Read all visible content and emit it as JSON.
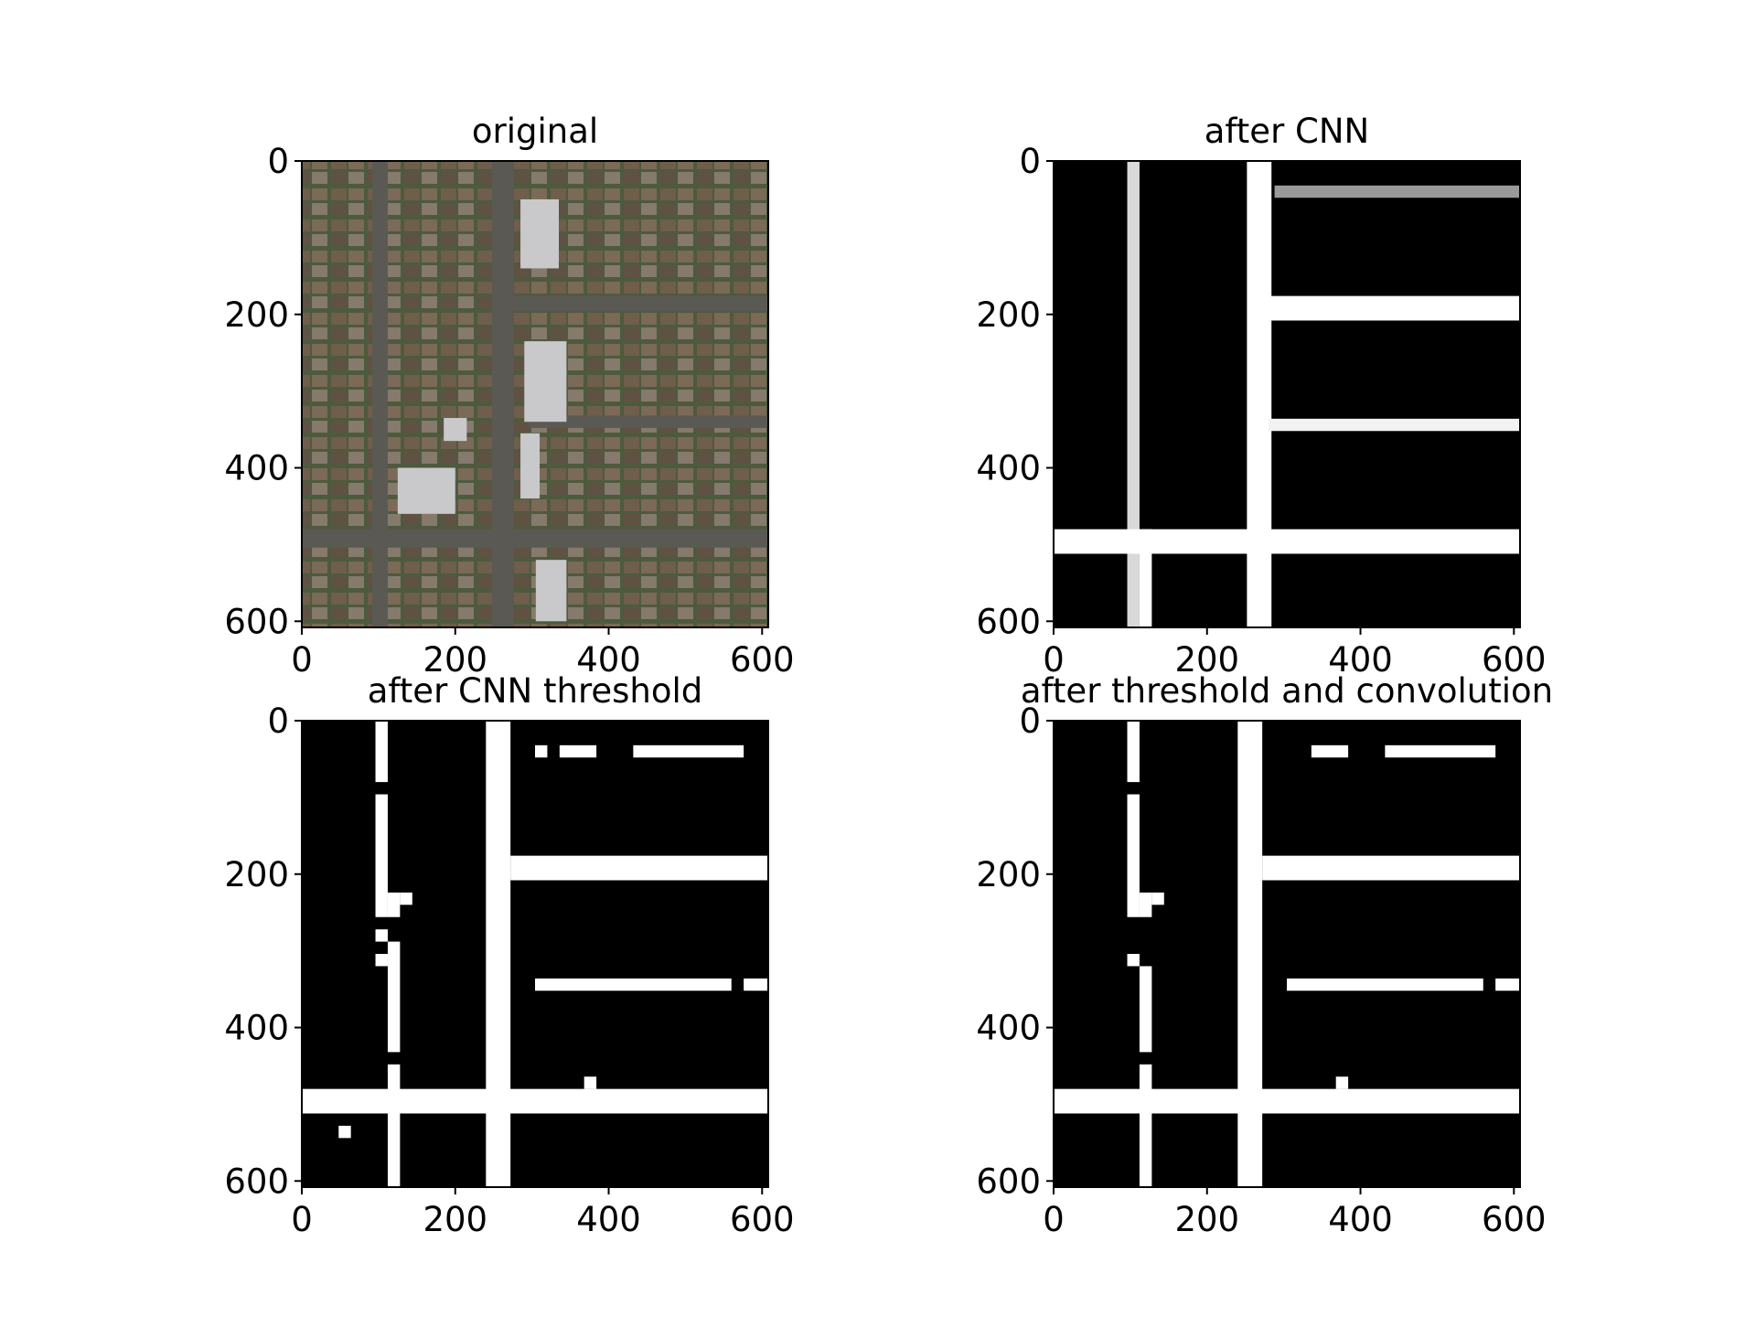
{
  "chart_data": [
    {
      "type": "image",
      "title": "original",
      "xlim": [
        0,
        608
      ],
      "ylim": [
        608,
        0
      ],
      "xticks": [
        0,
        200,
        400,
        600
      ],
      "yticks": [
        0,
        200,
        400,
        600
      ],
      "xtick_labels": [
        "0",
        "200",
        "400",
        "600"
      ],
      "ytick_labels": [
        "0",
        "200",
        "400",
        "600"
      ],
      "content": "aerial",
      "colors": {
        "building": "#6b5b48",
        "road": "#5b5954",
        "grass": "#3f5a34"
      }
    },
    {
      "type": "heatmap",
      "title": "after CNN",
      "xlim": [
        0,
        608
      ],
      "ylim": [
        608,
        0
      ],
      "xticks": [
        0,
        200,
        400,
        600
      ],
      "yticks": [
        0,
        200,
        400,
        600
      ],
      "xtick_labels": [
        "0",
        "200",
        "400",
        "600"
      ],
      "ytick_labels": [
        "0",
        "200",
        "400",
        "600"
      ],
      "colormap": "gray",
      "white_regions": [
        {
          "x": [
            96,
            112
          ],
          "y": [
            0,
            608
          ],
          "v": 0.85
        },
        {
          "x": [
            252,
            284
          ],
          "y": [
            0,
            608
          ],
          "v": 1.0
        },
        {
          "x": [
            272,
            608
          ],
          "y": [
            176,
            208
          ],
          "v": 1.0
        },
        {
          "x": [
            280,
            608
          ],
          "y": [
            336,
            352
          ],
          "v": 0.95
        },
        {
          "x": [
            0,
            608
          ],
          "y": [
            480,
            512
          ],
          "v": 1.0
        },
        {
          "x": [
            112,
            128
          ],
          "y": [
            480,
            608
          ],
          "v": 1.0
        },
        {
          "x": [
            288,
            608
          ],
          "y": [
            32,
            48
          ],
          "v": 0.6
        }
      ]
    },
    {
      "type": "heatmap",
      "title": "after CNN threshold",
      "xlim": [
        0,
        608
      ],
      "ylim": [
        608,
        0
      ],
      "xticks": [
        0,
        200,
        400,
        600
      ],
      "yticks": [
        0,
        200,
        400,
        600
      ],
      "xtick_labels": [
        "0",
        "200",
        "400",
        "600"
      ],
      "ytick_labels": [
        "0",
        "200",
        "400",
        "600"
      ],
      "colormap": "binary",
      "white_regions": [
        {
          "x": [
            96,
            112
          ],
          "y": [
            0,
            80
          ]
        },
        {
          "x": [
            96,
            112
          ],
          "y": [
            96,
            256
          ]
        },
        {
          "x": [
            112,
            128
          ],
          "y": [
            224,
            256
          ]
        },
        {
          "x": [
            128,
            144
          ],
          "y": [
            224,
            240
          ]
        },
        {
          "x": [
            96,
            112
          ],
          "y": [
            272,
            288
          ]
        },
        {
          "x": [
            96,
            112
          ],
          "y": [
            304,
            320
          ]
        },
        {
          "x": [
            112,
            128
          ],
          "y": [
            288,
            432
          ]
        },
        {
          "x": [
            240,
            272
          ],
          "y": [
            0,
            608
          ]
        },
        {
          "x": [
            272,
            608
          ],
          "y": [
            176,
            208
          ]
        },
        {
          "x": [
            304,
            320
          ],
          "y": [
            32,
            48
          ]
        },
        {
          "x": [
            336,
            384
          ],
          "y": [
            32,
            48
          ]
        },
        {
          "x": [
            432,
            576
          ],
          "y": [
            32,
            48
          ]
        },
        {
          "x": [
            304,
            560
          ],
          "y": [
            336,
            352
          ]
        },
        {
          "x": [
            576,
            608
          ],
          "y": [
            336,
            352
          ]
        },
        {
          "x": [
            0,
            608
          ],
          "y": [
            480,
            512
          ]
        },
        {
          "x": [
            112,
            128
          ],
          "y": [
            448,
            608
          ]
        },
        {
          "x": [
            368,
            384
          ],
          "y": [
            464,
            480
          ]
        },
        {
          "x": [
            48,
            64
          ],
          "y": [
            528,
            544
          ]
        }
      ]
    },
    {
      "type": "heatmap",
      "title": "after threshold and convolution",
      "xlim": [
        0,
        608
      ],
      "ylim": [
        608,
        0
      ],
      "xticks": [
        0,
        200,
        400,
        600
      ],
      "yticks": [
        0,
        200,
        400,
        600
      ],
      "xtick_labels": [
        "0",
        "200",
        "400",
        "600"
      ],
      "ytick_labels": [
        "0",
        "200",
        "400",
        "600"
      ],
      "colormap": "binary",
      "white_regions": [
        {
          "x": [
            96,
            112
          ],
          "y": [
            0,
            80
          ]
        },
        {
          "x": [
            96,
            112
          ],
          "y": [
            96,
            256
          ]
        },
        {
          "x": [
            112,
            128
          ],
          "y": [
            224,
            256
          ]
        },
        {
          "x": [
            128,
            144
          ],
          "y": [
            224,
            240
          ]
        },
        {
          "x": [
            96,
            112
          ],
          "y": [
            304,
            320
          ]
        },
        {
          "x": [
            112,
            128
          ],
          "y": [
            320,
            432
          ]
        },
        {
          "x": [
            240,
            272
          ],
          "y": [
            0,
            608
          ]
        },
        {
          "x": [
            272,
            608
          ],
          "y": [
            176,
            208
          ]
        },
        {
          "x": [
            336,
            384
          ],
          "y": [
            32,
            48
          ]
        },
        {
          "x": [
            432,
            576
          ],
          "y": [
            32,
            48
          ]
        },
        {
          "x": [
            304,
            560
          ],
          "y": [
            336,
            352
          ]
        },
        {
          "x": [
            576,
            608
          ],
          "y": [
            336,
            352
          ]
        },
        {
          "x": [
            0,
            608
          ],
          "y": [
            480,
            512
          ]
        },
        {
          "x": [
            112,
            128
          ],
          "y": [
            448,
            608
          ]
        },
        {
          "x": [
            368,
            384
          ],
          "y": [
            464,
            480
          ]
        }
      ]
    }
  ]
}
